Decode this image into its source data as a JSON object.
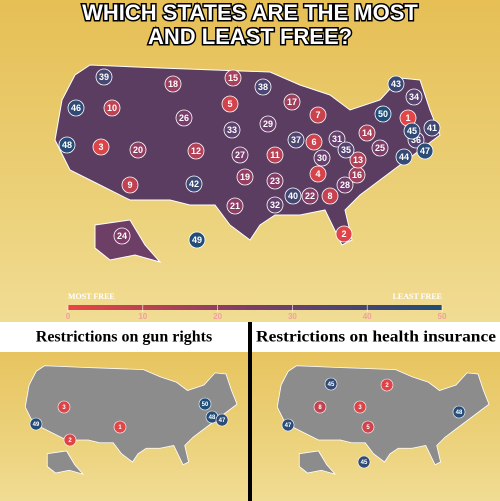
{
  "title_line1": "WHICH STATES ARE THE MOST",
  "title_line2": "AND LEAST FREE?",
  "main_map": {
    "ranks": [
      39,
      46,
      48,
      10,
      3,
      18,
      26,
      20,
      9,
      12,
      15,
      5,
      38,
      33,
      27,
      19,
      42,
      21,
      24,
      49,
      29,
      11,
      23,
      32,
      17,
      7,
      37,
      6,
      31,
      30,
      4,
      40,
      22,
      8,
      2,
      28,
      16,
      13,
      35,
      14,
      50,
      43,
      34,
      41,
      36,
      47,
      44,
      1,
      25,
      45
    ]
  },
  "legend": {
    "low_label": "MOST FREE",
    "high_label": "LEAST FREE",
    "ticks": [
      0,
      10,
      20,
      30,
      40,
      50
    ]
  },
  "panels": [
    {
      "title": "Restrictions on gun rights",
      "ranks": [
        3,
        49,
        2,
        1,
        50,
        48,
        47
      ]
    },
    {
      "title": "Restrictions on health insurance",
      "ranks": [
        45,
        8,
        47,
        3,
        5,
        2,
        45,
        48
      ]
    }
  ]
}
